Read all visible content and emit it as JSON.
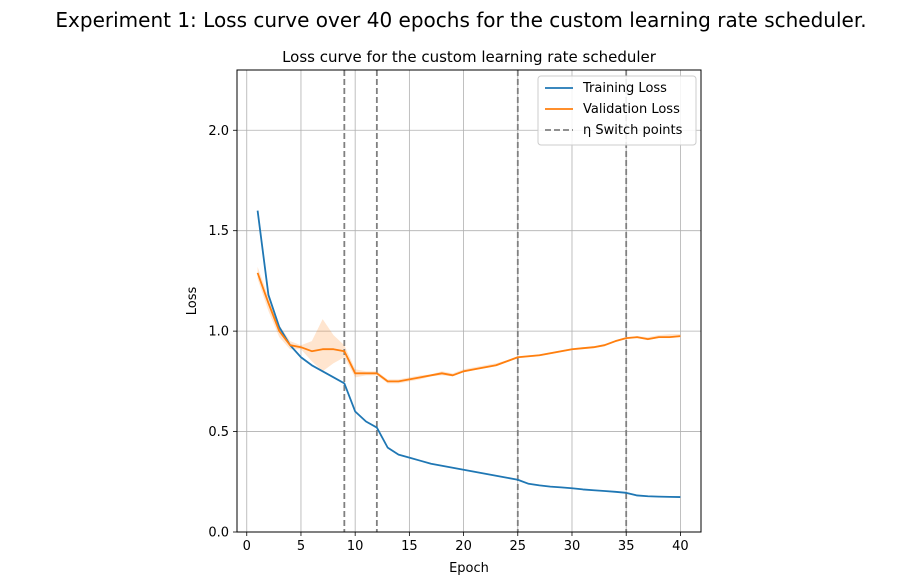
{
  "figure": {
    "suptitle": "Experiment 1: Loss curve over 40 epochs for the custom learning rate scheduler."
  },
  "chart_data": {
    "type": "line",
    "title": "Loss curve for the custom learning rate scheduler",
    "xlabel": "Epoch",
    "ylabel": "Loss",
    "xlim": [
      -0.9,
      41.9
    ],
    "ylim": [
      0,
      2.3
    ],
    "xticks": [
      0,
      5,
      10,
      15,
      20,
      25,
      30,
      35,
      40
    ],
    "yticks": [
      0.0,
      0.5,
      1.0,
      1.5,
      2.0
    ],
    "xtick_labels": [
      "0",
      "5",
      "10",
      "15",
      "20",
      "25",
      "30",
      "35",
      "40"
    ],
    "ytick_labels": [
      "0.0",
      "0.5",
      "1.0",
      "1.5",
      "2.0"
    ],
    "grid": true,
    "legend_position": "top-right",
    "x": [
      1,
      2,
      3,
      4,
      5,
      6,
      7,
      8,
      9,
      10,
      11,
      12,
      13,
      14,
      15,
      16,
      17,
      18,
      19,
      20,
      21,
      22,
      23,
      24,
      25,
      26,
      27,
      28,
      29,
      30,
      31,
      32,
      33,
      34,
      35,
      36,
      37,
      38,
      39,
      40
    ],
    "series": [
      {
        "name": "Training Loss",
        "color": "#1f77b4",
        "values": [
          1.6,
          1.18,
          1.02,
          0.93,
          0.87,
          0.83,
          0.8,
          0.77,
          0.74,
          0.6,
          0.55,
          0.52,
          0.42,
          0.385,
          0.37,
          0.355,
          0.34,
          0.33,
          0.32,
          0.31,
          0.3,
          0.29,
          0.28,
          0.27,
          0.26,
          0.24,
          0.232,
          0.226,
          0.222,
          0.218,
          0.212,
          0.208,
          0.204,
          0.2,
          0.195,
          0.182,
          0.178,
          0.176,
          0.175,
          0.174
        ],
        "band_lower": [
          1.6,
          1.18,
          1.02,
          0.93,
          0.87,
          0.83,
          0.8,
          0.77,
          0.74,
          0.6,
          0.55,
          0.52,
          0.42,
          0.385,
          0.37,
          0.355,
          0.34,
          0.33,
          0.32,
          0.31,
          0.3,
          0.29,
          0.28,
          0.27,
          0.26,
          0.24,
          0.232,
          0.226,
          0.222,
          0.218,
          0.212,
          0.208,
          0.204,
          0.2,
          0.195,
          0.182,
          0.178,
          0.176,
          0.175,
          0.174
        ],
        "band_upper": [
          1.6,
          1.18,
          1.02,
          0.93,
          0.87,
          0.83,
          0.8,
          0.77,
          0.74,
          0.6,
          0.55,
          0.52,
          0.42,
          0.385,
          0.37,
          0.355,
          0.34,
          0.33,
          0.32,
          0.31,
          0.3,
          0.29,
          0.28,
          0.27,
          0.26,
          0.24,
          0.232,
          0.226,
          0.222,
          0.218,
          0.212,
          0.208,
          0.204,
          0.2,
          0.195,
          0.182,
          0.178,
          0.176,
          0.175,
          0.174
        ]
      },
      {
        "name": "Validation Loss",
        "color": "#ff7f0e",
        "values": [
          1.29,
          1.14,
          1.0,
          0.93,
          0.92,
          0.9,
          0.91,
          0.91,
          0.9,
          0.79,
          0.79,
          0.79,
          0.75,
          0.75,
          0.76,
          0.77,
          0.78,
          0.79,
          0.78,
          0.8,
          0.81,
          0.82,
          0.83,
          0.85,
          0.87,
          0.875,
          0.88,
          0.89,
          0.9,
          0.91,
          0.915,
          0.92,
          0.93,
          0.95,
          0.965,
          0.97,
          0.96,
          0.97,
          0.97,
          0.975
        ],
        "band_lower": [
          1.26,
          1.1,
          0.97,
          0.91,
          0.91,
          0.85,
          0.8,
          0.84,
          0.87,
          0.77,
          0.78,
          0.78,
          0.74,
          0.74,
          0.75,
          0.76,
          0.775,
          0.78,
          0.775,
          0.795,
          0.805,
          0.815,
          0.825,
          0.845,
          0.865,
          0.87,
          0.875,
          0.885,
          0.895,
          0.905,
          0.91,
          0.915,
          0.925,
          0.945,
          0.96,
          0.965,
          0.955,
          0.965,
          0.965,
          0.97
        ],
        "band_upper": [
          1.32,
          1.17,
          1.03,
          0.95,
          0.93,
          0.95,
          1.06,
          0.98,
          0.93,
          0.81,
          0.8,
          0.8,
          0.76,
          0.76,
          0.77,
          0.78,
          0.785,
          0.8,
          0.79,
          0.81,
          0.82,
          0.83,
          0.84,
          0.855,
          0.875,
          0.88,
          0.885,
          0.895,
          0.905,
          0.915,
          0.92,
          0.925,
          0.935,
          0.955,
          0.97,
          0.975,
          0.97,
          0.98,
          0.985,
          0.985
        ]
      }
    ],
    "switch_points": {
      "name": "η Switch points",
      "color": "#808080",
      "x": [
        9,
        12,
        25,
        35
      ]
    }
  }
}
